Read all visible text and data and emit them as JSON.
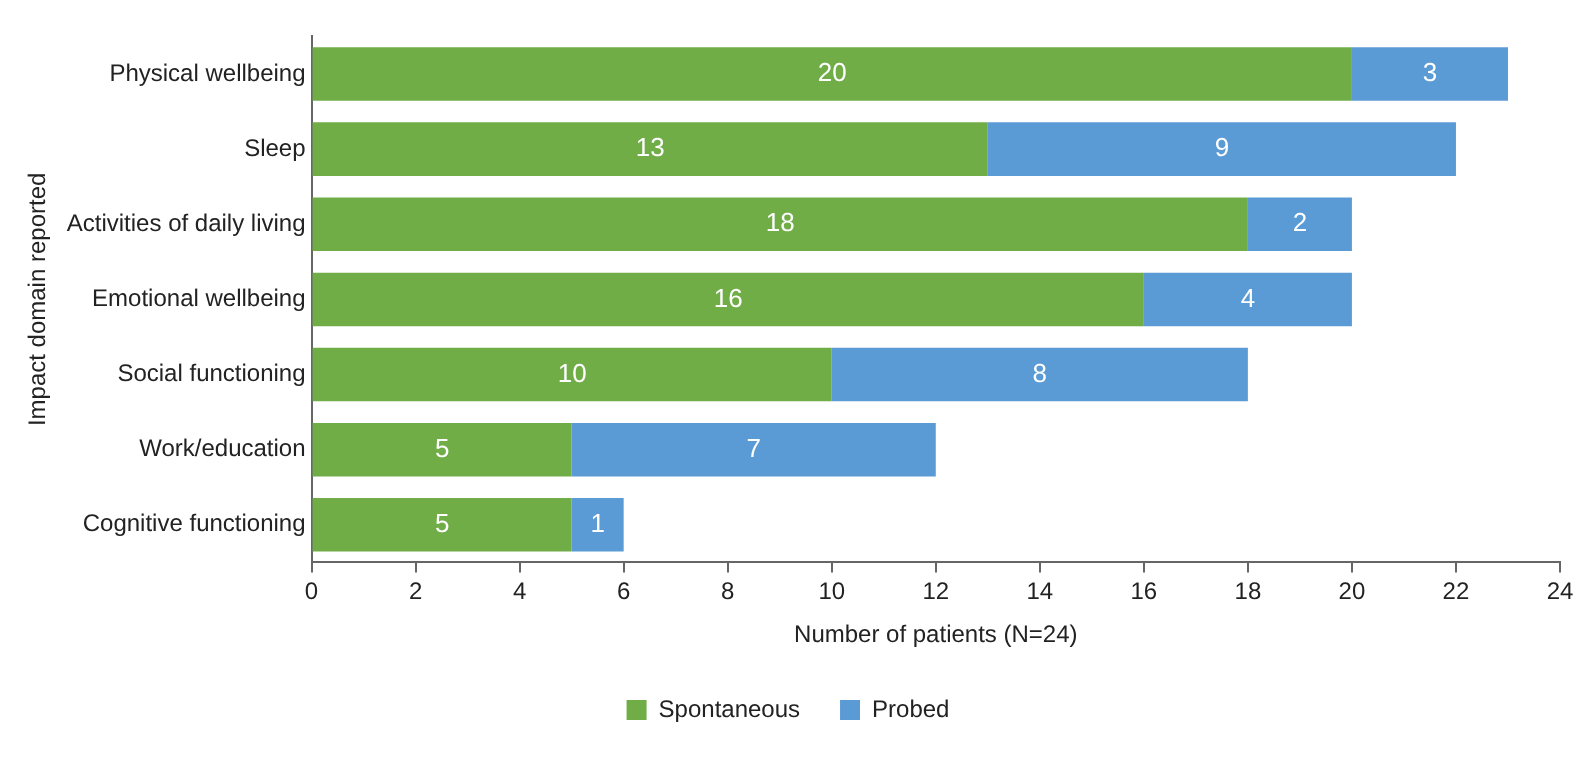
{
  "chart_data": {
    "type": "bar",
    "orientation": "horizontal",
    "stacked": true,
    "xlabel": "Number of patients (N=24)",
    "ylabel": "Impact domain reported",
    "categories": [
      "Physical wellbeing",
      "Sleep",
      "Activities of daily living",
      "Emotional wellbeing",
      "Social functioning",
      "Work/education",
      "Cognitive functioning"
    ],
    "series": [
      {
        "name": "Spontaneous",
        "color": "#70ad47",
        "values": [
          20,
          13,
          18,
          16,
          10,
          5,
          5
        ]
      },
      {
        "name": "Probed",
        "color": "#5b9bd5",
        "values": [
          3,
          9,
          2,
          4,
          8,
          7,
          1
        ]
      }
    ],
    "xlim": [
      0,
      24
    ],
    "xticks": [
      0,
      2,
      4,
      6,
      8,
      10,
      12,
      14,
      16,
      18,
      20,
      22,
      24
    ],
    "grid": false,
    "legend": "bottom",
    "data_labels": true
  }
}
